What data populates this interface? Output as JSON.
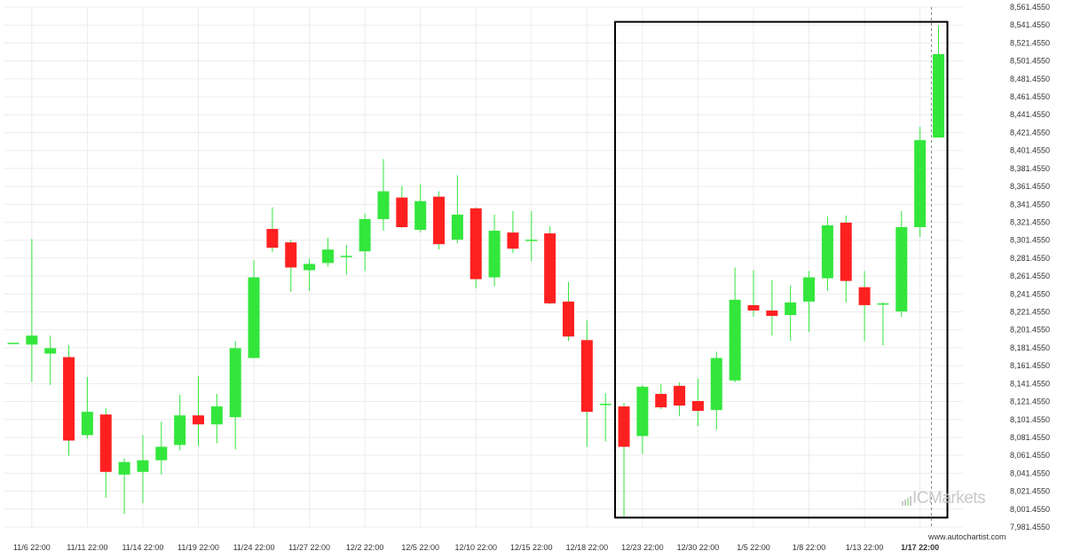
{
  "chart_data": {
    "type": "candlestick",
    "instrument": "",
    "y_axis": {
      "min": 7981.455,
      "max": 8561.455,
      "tick_step": 20,
      "tick_labels": [
        "8,561.4550",
        "8,541.4550",
        "8,521.4550",
        "8,501.4550",
        "8,481.4550",
        "8,461.4550",
        "8,441.4550",
        "8,421.4550",
        "8,401.4550",
        "8,381.4550",
        "8,361.4550",
        "8,341.4550",
        "8,321.4550",
        "8,301.4550",
        "8,281.4550",
        "8,261.4550",
        "8,241.4550",
        "8,221.4550",
        "8,201.4550",
        "8,181.4550",
        "8,161.4550",
        "8,141.4550",
        "8,121.4550",
        "8,101.4550",
        "8,081.4550",
        "8,061.4550",
        "8,041.4550",
        "8,021.4550",
        "8,001.4550",
        "7,981.4550"
      ],
      "position": "right"
    },
    "x_axis": {
      "tick_labels": [
        {
          "label": "11/6 22:00",
          "bar": 1
        },
        {
          "label": "11/11 22:00",
          "bar": 4
        },
        {
          "label": "11/14 22:00",
          "bar": 7
        },
        {
          "label": "11/19 22:00",
          "bar": 10
        },
        {
          "label": "11/24 22:00",
          "bar": 13
        },
        {
          "label": "11/27 22:00",
          "bar": 16
        },
        {
          "label": "12/2 22:00",
          "bar": 19
        },
        {
          "label": "12/5 22:00",
          "bar": 22
        },
        {
          "label": "12/10 22:00",
          "bar": 25
        },
        {
          "label": "12/15 22:00",
          "bar": 28
        },
        {
          "label": "12/18 22:00",
          "bar": 31
        },
        {
          "label": "12/23 22:00",
          "bar": 34
        },
        {
          "label": "12/30 22:00",
          "bar": 37
        },
        {
          "label": "1/5 22:00",
          "bar": 40
        },
        {
          "label": "1/8 22:00",
          "bar": 43
        },
        {
          "label": "1/13 22:00",
          "bar": 46
        },
        {
          "label": "1/17 22:00",
          "bar": 49,
          "bold": true
        }
      ]
    },
    "grid": true,
    "candles": [
      {
        "o": 8187.0,
        "h": 8187.0,
        "l": 8187.0,
        "c": 8187.0
      },
      {
        "o": 8185.0,
        "h": 8303.0,
        "l": 8143.0,
        "c": 8195.0
      },
      {
        "o": 8175.0,
        "h": 8195.0,
        "l": 8140.0,
        "c": 8181.0
      },
      {
        "o": 8171.0,
        "h": 8184.0,
        "l": 8061.0,
        "c": 8078.0
      },
      {
        "o": 8084.0,
        "h": 8149.0,
        "l": 8080.0,
        "c": 8110.0
      },
      {
        "o": 8107.0,
        "h": 8114.0,
        "l": 8014.0,
        "c": 8043.0
      },
      {
        "o": 8040.0,
        "h": 8058.0,
        "l": 7996.0,
        "c": 8054.0
      },
      {
        "o": 8043.0,
        "h": 8084.0,
        "l": 8008.0,
        "c": 8056.0
      },
      {
        "o": 8056.0,
        "h": 8099.0,
        "l": 8040.0,
        "c": 8071.0
      },
      {
        "o": 8073.0,
        "h": 8129.0,
        "l": 8067.0,
        "c": 8106.0
      },
      {
        "o": 8106.0,
        "h": 8150.0,
        "l": 8072.0,
        "c": 8096.0
      },
      {
        "o": 8096.0,
        "h": 8130.0,
        "l": 8075.0,
        "c": 8116.0
      },
      {
        "o": 8104.0,
        "h": 8189.0,
        "l": 8068.0,
        "c": 8181.0
      },
      {
        "o": 8170.0,
        "h": 8279.0,
        "l": 8170.0,
        "c": 8260.0
      },
      {
        "o": 8314.0,
        "h": 8338.0,
        "l": 8288.0,
        "c": 8293.0
      },
      {
        "o": 8299.0,
        "h": 8302.0,
        "l": 8244.0,
        "c": 8271.0
      },
      {
        "o": 8268.0,
        "h": 8281.0,
        "l": 8245.0,
        "c": 8275.0
      },
      {
        "o": 8276.0,
        "h": 8304.0,
        "l": 8272.0,
        "c": 8291.0
      },
      {
        "o": 8284.0,
        "h": 8296.0,
        "l": 8263.0,
        "c": 8284.0
      },
      {
        "o": 8289.0,
        "h": 8331.0,
        "l": 8267.0,
        "c": 8325.0
      },
      {
        "o": 8325.0,
        "h": 8392.0,
        "l": 8312.0,
        "c": 8356.0
      },
      {
        "o": 8349.0,
        "h": 8362.0,
        "l": 8315.0,
        "c": 8316.0
      },
      {
        "o": 8313.0,
        "h": 8364.0,
        "l": 8310.0,
        "c": 8345.0
      },
      {
        "o": 8350.0,
        "h": 8356.0,
        "l": 8291.0,
        "c": 8297.0
      },
      {
        "o": 8302.0,
        "h": 8374.0,
        "l": 8298.0,
        "c": 8330.0
      },
      {
        "o": 8337.0,
        "h": 8338.0,
        "l": 8248.0,
        "c": 8258.0
      },
      {
        "o": 8260.0,
        "h": 8330.0,
        "l": 8250.0,
        "c": 8312.0
      },
      {
        "o": 8310.0,
        "h": 8334.0,
        "l": 8287.0,
        "c": 8292.0
      },
      {
        "o": 8302.0,
        "h": 8334.0,
        "l": 8278.0,
        "c": 8302.0
      },
      {
        "o": 8309.0,
        "h": 8317.0,
        "l": 8230.0,
        "c": 8231.0
      },
      {
        "o": 8233.0,
        "h": 8255.0,
        "l": 8189.0,
        "c": 8194.0
      },
      {
        "o": 8190.0,
        "h": 8212.0,
        "l": 8071.0,
        "c": 8110.0
      },
      {
        "o": 8119.0,
        "h": 8131.0,
        "l": 8077.0,
        "c": 8119.0
      },
      {
        "o": 8116.0,
        "h": 8120.0,
        "l": 7993.0,
        "c": 8071.0
      },
      {
        "o": 8083.0,
        "h": 8140.0,
        "l": 8063.0,
        "c": 8138.0
      },
      {
        "o": 8130.0,
        "h": 8141.0,
        "l": 8113.0,
        "c": 8115.0
      },
      {
        "o": 8139.0,
        "h": 8143.0,
        "l": 8105.0,
        "c": 8117.0
      },
      {
        "o": 8122.0,
        "h": 8147.0,
        "l": 8094.0,
        "c": 8111.0
      },
      {
        "o": 8112.0,
        "h": 8177.0,
        "l": 8090.0,
        "c": 8170.0
      },
      {
        "o": 8145.0,
        "h": 8271.0,
        "l": 8143.0,
        "c": 8235.0
      },
      {
        "o": 8229.0,
        "h": 8268.0,
        "l": 8216.0,
        "c": 8223.0
      },
      {
        "o": 8223.0,
        "h": 8257.0,
        "l": 8195.0,
        "c": 8217.0
      },
      {
        "o": 8218.0,
        "h": 8251.0,
        "l": 8189.0,
        "c": 8232.0
      },
      {
        "o": 8233.0,
        "h": 8267.0,
        "l": 8199.0,
        "c": 8260.0
      },
      {
        "o": 8259.0,
        "h": 8328.0,
        "l": 8245.0,
        "c": 8318.0
      },
      {
        "o": 8321.0,
        "h": 8329.0,
        "l": 8232.0,
        "c": 8256.0
      },
      {
        "o": 8249.0,
        "h": 8267.0,
        "l": 8189.0,
        "c": 8229.0
      },
      {
        "o": 8231.0,
        "h": 8232.0,
        "l": 8184.0,
        "c": 8231.0
      },
      {
        "o": 8222.0,
        "h": 8334.0,
        "l": 8216.0,
        "c": 8316.0
      },
      {
        "o": 8316.0,
        "h": 8428.0,
        "l": 8305.0,
        "c": 8413.0
      },
      {
        "o": 8416.0,
        "h": 8541.0,
        "l": 8416.0,
        "c": 8509.0
      }
    ],
    "highlight_box": {
      "bar_start": 33,
      "bar_end": 50,
      "y_high": 8545.0,
      "y_low": 7992.0
    },
    "colors": {
      "up": "#33e63c",
      "down": "#ff2020",
      "wick": "#33e63c",
      "box": "#000000",
      "grid": "#ececec"
    }
  },
  "branding": {
    "watermark": "ICMarkets",
    "watermark_icon": "bars-logo-icon",
    "site": "www.autochartist.com"
  }
}
